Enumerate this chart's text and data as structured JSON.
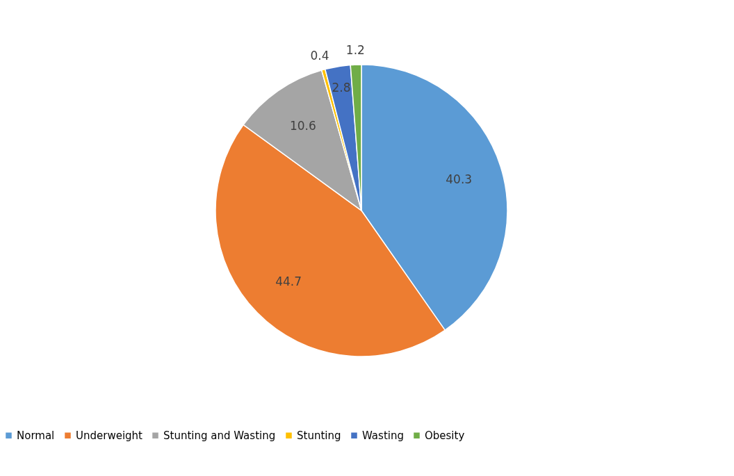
{
  "chart_data": {
    "type": "pie",
    "categories": [
      "Normal",
      "Underweight",
      "Stunting and Wasting",
      "Stunting",
      "Wasting",
      "Obesity"
    ],
    "values": [
      40.3,
      44.7,
      10.6,
      0.4,
      2.8,
      1.2
    ],
    "colors": [
      "#5b9bd5",
      "#ed7d31",
      "#a5a5a5",
      "#ffc000",
      "#4472c4",
      "#70ad47"
    ],
    "data_labels": true,
    "legend": "bottom"
  }
}
